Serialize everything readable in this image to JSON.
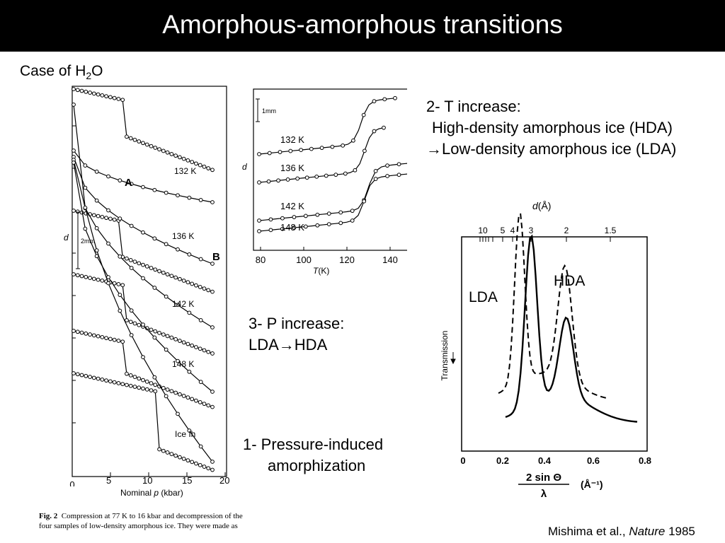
{
  "slide": {
    "title": "Amorphous-amorphous transitions",
    "case_prefix": "Case of H",
    "case_sub": "2",
    "case_suffix": "O",
    "note2_line1": "2- T increase:",
    "note2_line2": "High-density amorphous ice (HDA)",
    "note2_line3": "→Low-density amorphous ice (LDA)",
    "note3_line1": "3- P increase:",
    "note3_line2": "LDA→HDA",
    "note1_line1": "1- Pressure-induced",
    "note1_line2": "amorphization",
    "citation_authors": "Mishima et al., ",
    "citation_journal": "Nature",
    "citation_year": " 1985"
  },
  "fig_pressure": {
    "xticks": [
      "0",
      "5",
      "10",
      "15",
      "20"
    ],
    "xlabel_prefix": "Nominal ",
    "xlabel_var": "p",
    "xlabel_unit": " (kbar)",
    "ylabel": "d",
    "scale_label": "2mm",
    "labels": [
      "132 K",
      "136 K",
      "142 K",
      "148 K",
      "Ice Ih"
    ],
    "point_a": "A",
    "point_b": "B",
    "caption_bold": "Fig. 2",
    "caption_line1": "  Compression at 77 K to 16 kbar and decompression of the",
    "caption_line2": "four samples of low-density amorphous ice. They were made as"
  },
  "fig_temperature": {
    "xticks": [
      "80",
      "100",
      "120",
      "140"
    ],
    "xlabel_var": "T",
    "xlabel_unit": "(K)",
    "ylabel": "d",
    "scale_label": "1mm",
    "labels": [
      "132 K",
      "136 K",
      "142 K",
      "148 K"
    ]
  },
  "fig_diffraction": {
    "top_title_var": "d",
    "top_title_unit": "(Å)",
    "top_ticks": [
      "10",
      "5",
      "4",
      "3",
      "2",
      "1.5"
    ],
    "xticks": [
      "0",
      "0.2",
      "0.4",
      "0.6",
      "0.8"
    ],
    "xlabel_num": "2 sin Θ",
    "xlabel_den": "λ",
    "xlabel_unit": "(Å⁻¹)",
    "ylabel": "Transmission",
    "label_lda": "LDA",
    "label_hda": "HDA"
  }
}
